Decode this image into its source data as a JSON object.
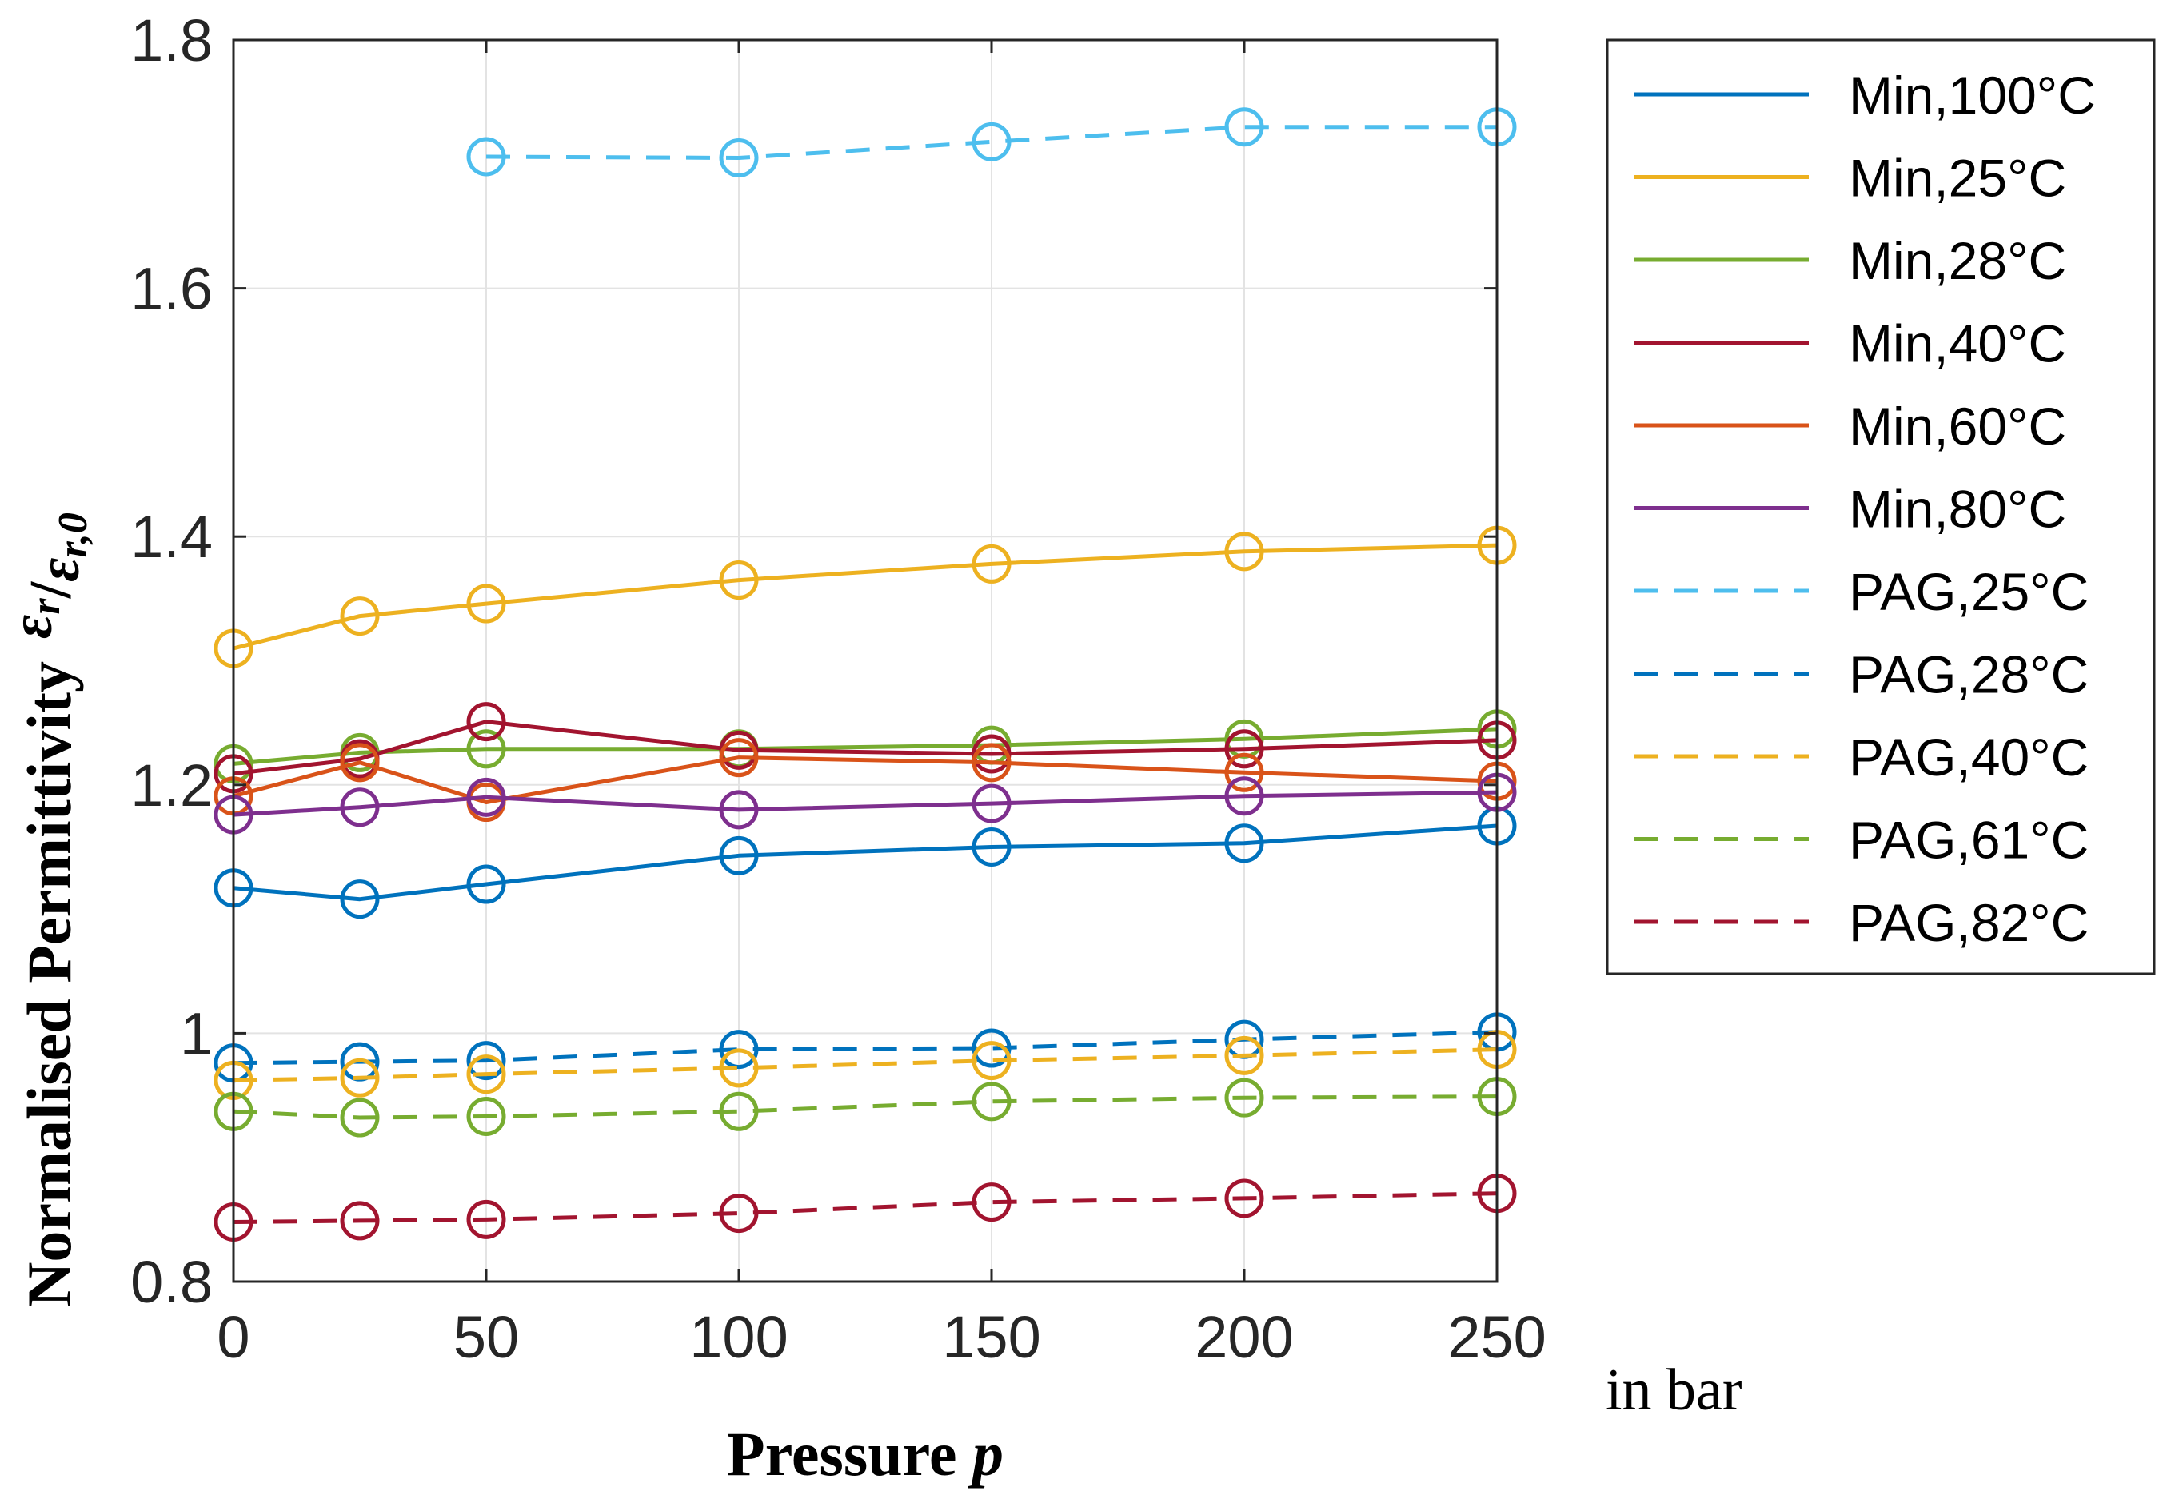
{
  "chart_data": {
    "type": "line",
    "title": "",
    "xlabel": "Pressure",
    "xlabel_symbol": "p",
    "x_unit": "in bar",
    "ylabel": "Normalised Permittivity",
    "ylabel_symbol": {
      "num": "ε",
      "num_sub": "r",
      "slash": "/",
      "den": "ε",
      "den_sub": "r,0"
    },
    "xlim": [
      0,
      250
    ],
    "ylim": [
      0.8,
      1.8
    ],
    "xticks": [
      0,
      50,
      100,
      150,
      200,
      250
    ],
    "xtick_labels": [
      "0",
      "50",
      "100",
      "150",
      "200",
      "250"
    ],
    "yticks": [
      0.8,
      1.0,
      1.2,
      1.4,
      1.6,
      1.8
    ],
    "ytick_labels": [
      "0.8",
      "1",
      "1.2",
      "1.4",
      "1.6",
      "1.8"
    ],
    "grid": true,
    "legend_position": "outside-right",
    "marker": "circle",
    "series": [
      {
        "name": "Min,100°C",
        "color": "#0072BD",
        "style": "solid",
        "x": [
          0,
          25,
          50,
          100,
          150,
          200,
          250
        ],
        "y": [
          1.117,
          1.108,
          1.12,
          1.143,
          1.15,
          1.153,
          1.167
        ]
      },
      {
        "name": "Min,25°C",
        "color": "#EDB120",
        "style": "solid",
        "x": [
          0,
          25,
          50,
          100,
          150,
          200,
          250
        ],
        "y": [
          1.31,
          1.336,
          1.346,
          1.365,
          1.378,
          1.388,
          1.393
        ]
      },
      {
        "name": "Min,28°C",
        "color": "#77AC30",
        "style": "solid",
        "x": [
          0,
          25,
          50,
          100,
          150,
          200,
          250
        ],
        "y": [
          1.217,
          1.226,
          1.229,
          1.229,
          1.232,
          1.237,
          1.245
        ]
      },
      {
        "name": "Min,40°C",
        "color": "#A2142F",
        "style": "solid",
        "x": [
          0,
          25,
          50,
          100,
          150,
          200,
          250
        ],
        "y": [
          1.209,
          1.221,
          1.251,
          1.228,
          1.225,
          1.229,
          1.236
        ]
      },
      {
        "name": "Min,60°C",
        "color": "#D95319",
        "style": "solid",
        "x": [
          0,
          25,
          50,
          100,
          150,
          200,
          250
        ],
        "y": [
          1.191,
          1.218,
          1.186,
          1.222,
          1.218,
          1.21,
          1.203
        ]
      },
      {
        "name": "Min,80°C",
        "color": "#7E2F8E",
        "style": "solid",
        "x": [
          0,
          25,
          50,
          100,
          150,
          200,
          250
        ],
        "y": [
          1.176,
          1.182,
          1.19,
          1.18,
          1.185,
          1.191,
          1.194
        ]
      },
      {
        "name": "PAG,25°C",
        "color": "#4DBEEE",
        "style": "dashed",
        "x": [
          50,
          100,
          150,
          200,
          250
        ],
        "y": [
          1.706,
          1.705,
          1.718,
          1.73,
          1.73
        ]
      },
      {
        "name": "PAG,28°C",
        "color": "#0072BD",
        "style": "dashed",
        "x": [
          0,
          25,
          50,
          100,
          150,
          200,
          250
        ],
        "y": [
          0.976,
          0.977,
          0.978,
          0.987,
          0.988,
          0.995,
          1.001
        ]
      },
      {
        "name": "PAG,40°C",
        "color": "#EDB120",
        "style": "dashed",
        "x": [
          0,
          25,
          50,
          100,
          150,
          200,
          250
        ],
        "y": [
          0.962,
          0.964,
          0.967,
          0.972,
          0.978,
          0.982,
          0.987
        ]
      },
      {
        "name": "PAG,61°C",
        "color": "#77AC30",
        "style": "dashed",
        "x": [
          0,
          25,
          50,
          100,
          150,
          200,
          250
        ],
        "y": [
          0.937,
          0.932,
          0.933,
          0.937,
          0.945,
          0.948,
          0.949
        ]
      },
      {
        "name": "PAG,82°C",
        "color": "#A2142F",
        "style": "dashed",
        "x": [
          0,
          25,
          50,
          100,
          150,
          200,
          250
        ],
        "y": [
          0.848,
          0.849,
          0.85,
          0.855,
          0.864,
          0.867,
          0.871
        ]
      }
    ]
  }
}
